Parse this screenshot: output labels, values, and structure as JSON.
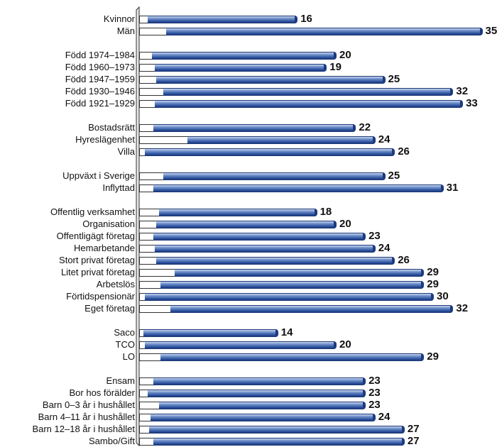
{
  "chart_data": {
    "type": "bar",
    "orientation": "horizontal",
    "colors": {
      "bar": "#2a4f9c",
      "bar_light": "#c8d6ef",
      "baseline_segment": "#ffffff",
      "text": "#111111"
    },
    "groups": [
      {
        "items": [
          {
            "label": "Kvinnor",
            "value": 16
          },
          {
            "label": "Män",
            "value": 35
          }
        ]
      },
      {
        "items": [
          {
            "label": "Född 1974–1984",
            "value": 20
          },
          {
            "label": "Född 1960–1973",
            "value": 19
          },
          {
            "label": "Född 1947–1959",
            "value": 25
          },
          {
            "label": "Född 1930–1946",
            "value": 32
          },
          {
            "label": "Född 1921–1929",
            "value": 33
          }
        ]
      },
      {
        "items": [
          {
            "label": "Bostadsrätt",
            "value": 22
          },
          {
            "label": "Hyreslägenhet",
            "value": 24
          },
          {
            "label": "Villa",
            "value": 26
          }
        ]
      },
      {
        "items": [
          {
            "label": "Uppväxt i Sverige",
            "value": 25
          },
          {
            "label": "Inflyttad",
            "value": 31
          }
        ]
      },
      {
        "items": [
          {
            "label": "Offentlig verksamhet",
            "value": 18
          },
          {
            "label": "Organisation",
            "value": 20
          },
          {
            "label": "Offentligägt företag",
            "value": 23
          },
          {
            "label": "Hemarbetande",
            "value": 24
          },
          {
            "label": "Stort privat företag",
            "value": 26
          },
          {
            "label": "Litet privat företag",
            "value": 29
          },
          {
            "label": "Arbetslös",
            "value": 29
          },
          {
            "label": "Förtidspensionär",
            "value": 30
          },
          {
            "label": "Eget företag",
            "value": 32
          }
        ]
      },
      {
        "items": [
          {
            "label": "Saco",
            "value": 14
          },
          {
            "label": "TCO",
            "value": 20
          },
          {
            "label": "LO",
            "value": 29
          }
        ]
      },
      {
        "items": [
          {
            "label": "Ensam",
            "value": 23
          },
          {
            "label": "Bor hos förälder",
            "value": 23
          },
          {
            "label": "Barn 0–3 år i hushållet",
            "value": 23
          },
          {
            "label": "Barn 4–11 år i hushållet",
            "value": 24
          },
          {
            "label": "Barn 12–18 år i hushållet",
            "value": 27
          },
          {
            "label": "Sambo/Gift",
            "value": 27
          }
        ]
      }
    ]
  }
}
